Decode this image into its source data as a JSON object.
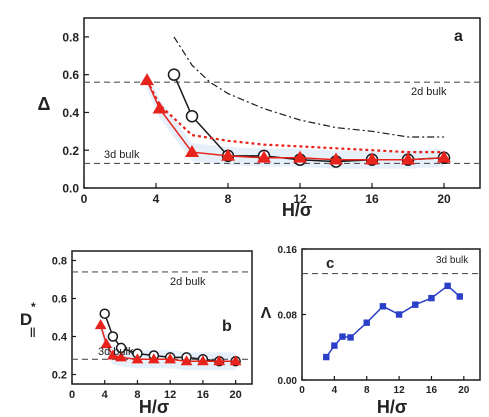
{
  "chart_data": [
    {
      "panel": "a",
      "type": "line",
      "xlabel": "H/σ",
      "ylabel": "Δ",
      "xlim": [
        0,
        22
      ],
      "ylim": [
        0,
        0.9
      ],
      "xticks": [
        0,
        4,
        8,
        12,
        16,
        20
      ],
      "yticks": [
        0.0,
        0.2,
        0.4,
        0.6,
        0.8
      ],
      "grid": false,
      "series": [
        {
          "style": "black circles, solid line",
          "x": [
            5,
            6,
            8,
            10,
            12,
            14,
            16,
            18,
            20
          ],
          "y": [
            0.6,
            0.38,
            0.17,
            0.17,
            0.15,
            0.14,
            0.15,
            0.15,
            0.16
          ]
        },
        {
          "style": "red triangles, solid line",
          "x": [
            3.5,
            4.2,
            6,
            8,
            10,
            12,
            14,
            16,
            18,
            20
          ],
          "y": [
            0.57,
            0.42,
            0.19,
            0.17,
            0.16,
            0.16,
            0.15,
            0.15,
            0.15,
            0.16
          ]
        },
        {
          "style": "red dotted line",
          "x": [
            3.5,
            4.2,
            6,
            8,
            10,
            12,
            14,
            16,
            18,
            20
          ],
          "y": [
            0.57,
            0.44,
            0.28,
            0.25,
            0.23,
            0.22,
            0.21,
            0.2,
            0.19,
            0.19
          ]
        },
        {
          "style": "black dash-dot line",
          "x": [
            5,
            6,
            7,
            8,
            10,
            12,
            14,
            16,
            18,
            20
          ],
          "y": [
            0.8,
            0.65,
            0.56,
            0.5,
            0.42,
            0.36,
            0.32,
            0.3,
            0.27,
            0.27
          ]
        }
      ],
      "reference_lines": [
        {
          "label": "2d bulk",
          "y": 0.56,
          "style": "dashed"
        },
        {
          "label": "3d bulk",
          "y": 0.13,
          "style": "dashed"
        }
      ]
    },
    {
      "panel": "b",
      "type": "line",
      "xlabel": "H/σ",
      "ylabel": "D||*",
      "xlim": [
        0,
        22
      ],
      "ylim": [
        0.15,
        0.85
      ],
      "xticks": [
        0,
        4,
        8,
        12,
        16,
        20
      ],
      "yticks": [
        0.2,
        0.4,
        0.6,
        0.8
      ],
      "grid": false,
      "series": [
        {
          "style": "black circles, solid line",
          "x": [
            4,
            5,
            6,
            8,
            10,
            12,
            14,
            16,
            18,
            20
          ],
          "y": [
            0.52,
            0.4,
            0.34,
            0.31,
            0.3,
            0.29,
            0.29,
            0.28,
            0.27,
            0.27
          ]
        },
        {
          "style": "red triangles, solid line",
          "x": [
            3.5,
            4.2,
            5,
            6,
            8,
            10,
            12,
            14,
            16,
            18,
            20
          ],
          "y": [
            0.46,
            0.36,
            0.3,
            0.29,
            0.28,
            0.28,
            0.28,
            0.27,
            0.27,
            0.27,
            0.27
          ]
        }
      ],
      "reference_lines": [
        {
          "label": "2d bulk",
          "y": 0.74,
          "style": "dashed"
        },
        {
          "label": "3d bulk",
          "y": 0.28,
          "style": "dashed"
        }
      ]
    },
    {
      "panel": "c",
      "type": "line",
      "xlabel": "H/σ",
      "ylabel": "Λ",
      "xlim": [
        0,
        22
      ],
      "ylim": [
        0,
        0.16
      ],
      "xticks": [
        0,
        4,
        8,
        12,
        16,
        20
      ],
      "yticks": [
        0.0,
        0.08,
        0.16
      ],
      "grid": false,
      "series": [
        {
          "style": "blue squares, solid line",
          "x": [
            3,
            4,
            5,
            6,
            8,
            10,
            12,
            14,
            16,
            18,
            19.5
          ],
          "y": [
            0.028,
            0.042,
            0.053,
            0.052,
            0.07,
            0.09,
            0.08,
            0.092,
            0.1,
            0.115,
            0.102
          ]
        }
      ],
      "reference_lines": [
        {
          "label": "3d bulk",
          "y": 0.13,
          "style": "dashed"
        }
      ]
    }
  ],
  "labels": {
    "panel_a": "a",
    "panel_b": "b",
    "panel_c": "c",
    "xlabel": "H/σ",
    "ylabel_a": "Δ",
    "ylabel_b_main": "D",
    "ylabel_b_sub": "||",
    "ylabel_b_sup": "*",
    "ylabel_c": "Λ",
    "ref_2d": "2d bulk",
    "ref_3d": "3d bulk"
  },
  "colors": {
    "black": "#1a1a1a",
    "red": "#e8231c",
    "blue": "#2b3fc8",
    "shade": "#cfe4f7"
  }
}
